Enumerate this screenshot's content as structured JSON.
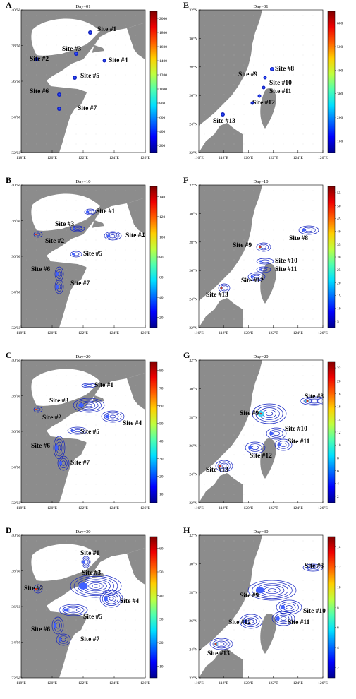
{
  "panels": [
    {
      "id": "A",
      "letter": "A",
      "day": "Day=01",
      "region": "north",
      "colorbar_ticks": [
        "2000",
        "1800",
        "1600",
        "1400",
        "1200",
        "1000",
        "800",
        "600",
        "400",
        "200"
      ],
      "sites": [
        {
          "label": "Site #1"
        },
        {
          "label": "Site #3"
        },
        {
          "label": "Site #2"
        },
        {
          "label": "Site #4"
        },
        {
          "label": "Site #5"
        },
        {
          "label": "Site #6"
        },
        {
          "label": "Site #7"
        }
      ]
    },
    {
      "id": "E",
      "letter": "E",
      "day": "Day=01",
      "region": "south",
      "colorbar_ticks": [
        "600",
        "500",
        "400",
        "300",
        "200",
        "100"
      ],
      "sites": [
        {
          "label": "Site #8"
        },
        {
          "label": "Site #9"
        },
        {
          "label": "Site #10"
        },
        {
          "label": "Site #11"
        },
        {
          "label": "Site #12"
        },
        {
          "label": "Site #13"
        }
      ]
    },
    {
      "id": "B",
      "letter": "B",
      "day": "Day=10",
      "region": "north",
      "colorbar_ticks": [
        "140",
        "120",
        "100",
        "80",
        "60",
        "40",
        "20"
      ],
      "sites": [
        {
          "label": "Site #1"
        },
        {
          "label": "Site #3"
        },
        {
          "label": "Site #2"
        },
        {
          "label": "Site #4"
        },
        {
          "label": "Site #5"
        },
        {
          "label": "Site #6"
        },
        {
          "label": "Site #7"
        }
      ]
    },
    {
      "id": "F",
      "letter": "F",
      "day": "Day=10",
      "region": "south",
      "colorbar_ticks": [
        "55",
        "50",
        "45",
        "40",
        "35",
        "30",
        "25",
        "20",
        "15",
        "10",
        "5"
      ],
      "sites": [
        {
          "label": "Site #8"
        },
        {
          "label": "Site #9"
        },
        {
          "label": "Site #10"
        },
        {
          "label": "Site #11"
        },
        {
          "label": "Site #12"
        },
        {
          "label": "Site #13"
        }
      ]
    },
    {
      "id": "C",
      "letter": "C",
      "day": "Day=20",
      "region": "north",
      "colorbar_ticks": [
        "80",
        "70",
        "60",
        "50",
        "40",
        "30",
        "20",
        "10"
      ],
      "sites": [
        {
          "label": "Site #1"
        },
        {
          "label": "Site #3"
        },
        {
          "label": "Site #2"
        },
        {
          "label": "Site #4"
        },
        {
          "label": "Site #5"
        },
        {
          "label": "Site #6"
        },
        {
          "label": "Site #7"
        }
      ]
    },
    {
      "id": "G",
      "letter": "G",
      "day": "Day=20",
      "region": "south",
      "colorbar_ticks": [
        "22",
        "20",
        "18",
        "16",
        "14",
        "12",
        "10",
        "8",
        "6",
        "4",
        "2"
      ],
      "sites": [
        {
          "label": "Site #8"
        },
        {
          "label": "Site #9"
        },
        {
          "label": "Site #10"
        },
        {
          "label": "Site #11"
        },
        {
          "label": "Site #12"
        },
        {
          "label": "Site #13"
        }
      ]
    },
    {
      "id": "D",
      "letter": "D",
      "day": "Day=30",
      "region": "north",
      "colorbar_ticks": [
        "60",
        "50",
        "40",
        "30",
        "20",
        "10"
      ],
      "sites": [
        {
          "label": "Site #1"
        },
        {
          "label": "Site #3"
        },
        {
          "label": "Site #2"
        },
        {
          "label": "Site #4"
        },
        {
          "label": "Site #5"
        },
        {
          "label": "Site #6"
        },
        {
          "label": "Site #7"
        }
      ]
    },
    {
      "id": "H",
      "letter": "H",
      "day": "Day=30",
      "region": "south",
      "colorbar_ticks": [
        "14",
        "12",
        "10",
        "8",
        "6",
        "4",
        "2"
      ],
      "sites": [
        {
          "label": "Site #8"
        },
        {
          "label": "Site #9"
        },
        {
          "label": "Site #10"
        },
        {
          "label": "Site #11"
        },
        {
          "label": "Site #12"
        },
        {
          "label": "Site #13"
        }
      ]
    }
  ],
  "axes": {
    "north": {
      "lat_ticks": [
        "40°N",
        "38°N",
        "36°N",
        "34°N",
        "32°N"
      ],
      "lon_ticks": [
        "118°E",
        "120°E",
        "122°E",
        "124°E",
        "126°E"
      ]
    },
    "south": {
      "lat_ticks": [
        "32°N",
        "30°N",
        "28°N",
        "26°N",
        "24°N",
        "22°N"
      ],
      "lon_ticks": [
        "116°E",
        "118°E",
        "120°E",
        "122°E",
        "124°E",
        "126°E"
      ]
    }
  },
  "colors": {
    "land": "#8c8c8c",
    "sea": "#ffffff",
    "site_label": "#000000",
    "plume_low": "#1020c0",
    "plume_mid": "#40d0f0",
    "plume_high": "#e03020"
  },
  "colormap": [
    "#00008f",
    "#0000ff",
    "#006fff",
    "#00dfff",
    "#4fffaf",
    "#bfff3f",
    "#ffcf00",
    "#ff5f00",
    "#ef0000",
    "#800000"
  ]
}
